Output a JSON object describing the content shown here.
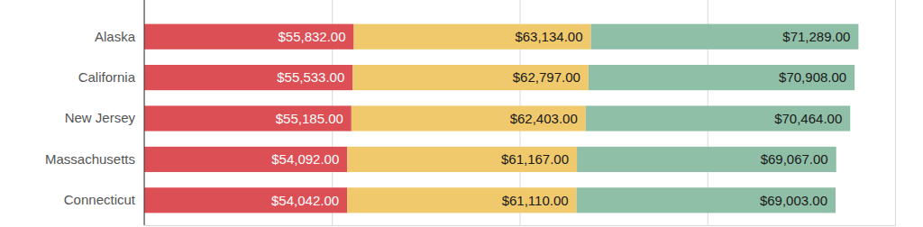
{
  "chart_data": {
    "type": "bar",
    "orientation": "horizontal",
    "stacked": true,
    "categories": [
      "Alaska",
      "California",
      "New Jersey",
      "Massachusetts",
      "Connecticut"
    ],
    "series": [
      {
        "color": "#db4f55",
        "values": [
          55832,
          55533,
          55185,
          54092,
          54042
        ],
        "value_labels": [
          "$55,832.00",
          "$55,533.00",
          "$55,185.00",
          "$54,092.00",
          "$54,042.00"
        ]
      },
      {
        "color": "#f0c96c",
        "values": [
          63134,
          62797,
          62403,
          61167,
          61110
        ],
        "value_labels": [
          "$63,134.00",
          "$62,797.00",
          "$62,403.00",
          "$61,167.00",
          "$61,110.00"
        ]
      },
      {
        "color": "#8fbfa6",
        "values": [
          71289,
          70908,
          70464,
          69067,
          69003
        ],
        "value_labels": [
          "$71,289.00",
          "$70,908.00",
          "$70,464.00",
          "$69,067.00",
          "$69,003.00"
        ]
      }
    ],
    "xlim": [
      0,
      200000
    ],
    "xticks": [
      0,
      50000,
      100000,
      150000,
      200000
    ],
    "grid": true,
    "data_labels": true,
    "tick_labels": "y"
  }
}
